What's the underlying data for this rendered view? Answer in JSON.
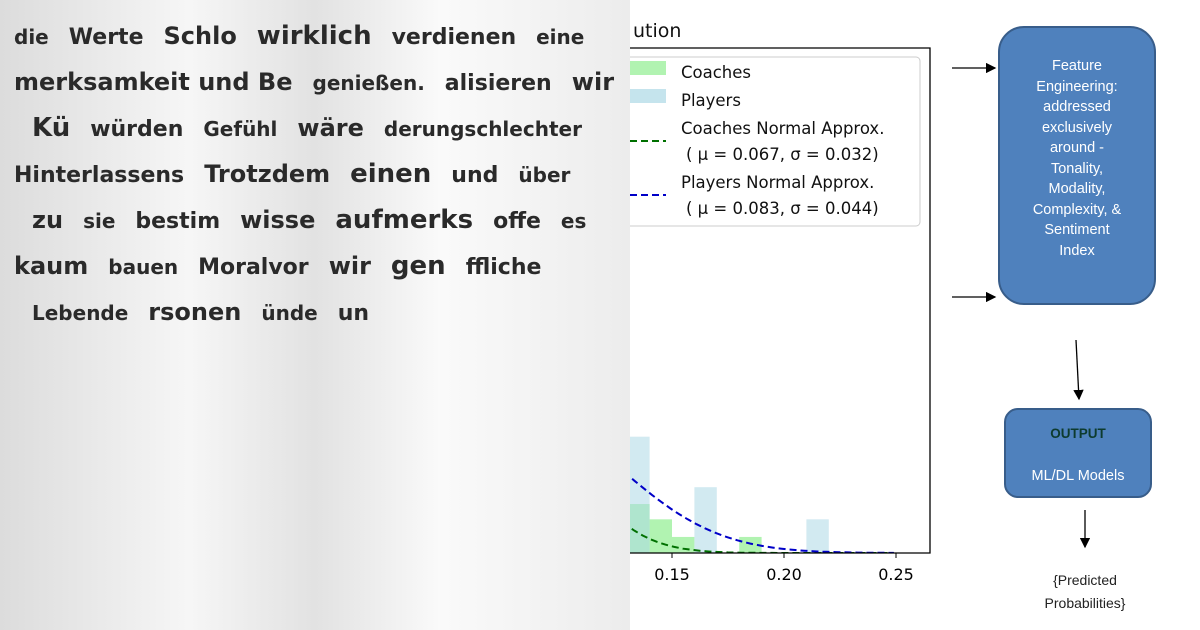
{
  "photo": {
    "words": [
      "die",
      "Werte",
      "Schlo",
      "wirklich",
      "verdienen",
      "eine",
      "merksamkeit und Be",
      "genießen.",
      "alisieren",
      "wir",
      "Kü",
      "würden",
      "Gefühl",
      "wäre",
      "derungschlechter",
      "Hinterlassens",
      "Trotzdem",
      "einen",
      "und",
      "über",
      "zu",
      "sie",
      "bestim",
      "wisse",
      "aufmerks",
      "offe",
      "es",
      "kaum",
      "bauen",
      "Moralvor",
      "wir",
      "gen",
      "ffliche",
      "Lebende",
      "rsonen",
      "ünde",
      "un"
    ]
  },
  "chart_data": {
    "type": "bar",
    "title": "ution",
    "xlabel": "",
    "ylabel": "",
    "xlim": [
      0.131,
      0.265
    ],
    "ylim": [
      0,
      33
    ],
    "xticks": [
      "0.15",
      "0.20",
      "0.25"
    ],
    "bin_width": 0.01,
    "grid": false,
    "legend_position": "top-right",
    "series": [
      {
        "name": "Coaches",
        "kind": "histogram",
        "color": "#90ee90",
        "bins": [
          [
            0.13,
            3.2
          ],
          [
            0.14,
            2.2
          ],
          [
            0.15,
            1.05
          ],
          [
            0.16,
            0
          ],
          [
            0.17,
            0
          ],
          [
            0.18,
            1.05
          ],
          [
            0.19,
            0
          ],
          [
            0.2,
            0
          ],
          [
            0.21,
            0
          ]
        ]
      },
      {
        "name": "Players",
        "kind": "histogram",
        "color": "#add8e6",
        "bins": [
          [
            0.13,
            7.6
          ],
          [
            0.14,
            0
          ],
          [
            0.15,
            0
          ],
          [
            0.16,
            4.3
          ],
          [
            0.17,
            0
          ],
          [
            0.18,
            0
          ],
          [
            0.19,
            0
          ],
          [
            0.2,
            0
          ],
          [
            0.21,
            2.2
          ]
        ]
      },
      {
        "name": "Coaches Normal Approx.",
        "params": "( μ = 0.067, σ = 0.032)",
        "kind": "normal",
        "mu": 0.067,
        "sigma": 0.032,
        "color": "#007000",
        "x_end": 0.25
      },
      {
        "name": "Players Normal Approx.",
        "params": "( μ = 0.083, σ = 0.044)",
        "kind": "normal",
        "mu": 0.083,
        "sigma": 0.044,
        "color": "#0000c8",
        "x_end": 0.25
      }
    ]
  },
  "diagram": {
    "feature_box": [
      "Feature",
      "Engineering:",
      "addressed",
      "exclusively",
      "around -",
      "Tonality,",
      "Modality,",
      "Complexity, &",
      "Sentiment",
      "Index"
    ],
    "output_title": "OUTPUT",
    "output_sub": "ML/DL Models",
    "result": [
      "{Predicted",
      "Probabilities}"
    ]
  }
}
